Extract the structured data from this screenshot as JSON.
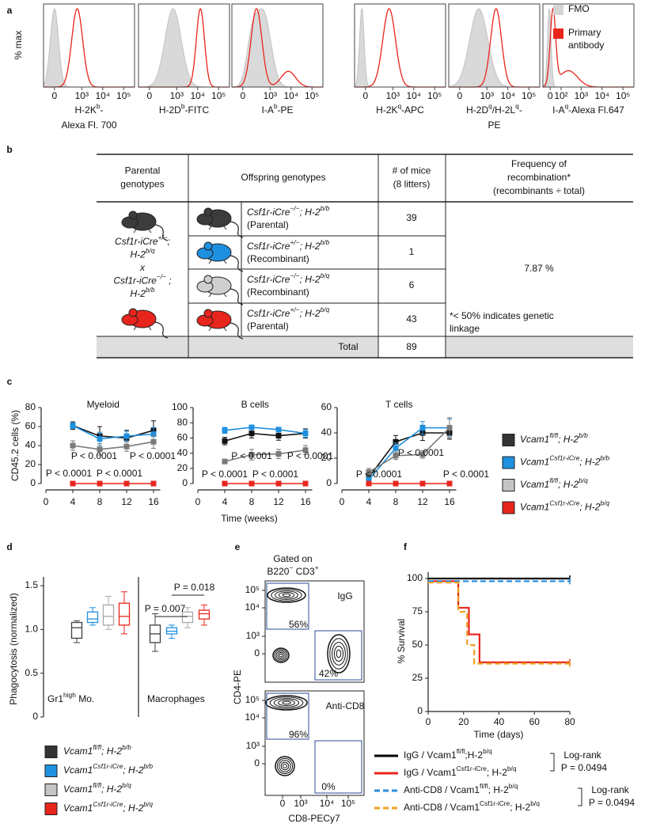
{
  "panel_labels": [
    "a",
    "b",
    "c",
    "d",
    "e",
    "f"
  ],
  "panel_a": {
    "y_label": "% max",
    "plots": [
      {
        "label_lines": [
          [
            "H-2K",
            "b",
            "-"
          ],
          [
            "Alexa Fl. 700"
          ]
        ],
        "xtick_labels": [
          "0",
          "10³",
          "10⁴",
          "10⁵"
        ]
      },
      {
        "label_lines": [
          [
            "H-2D",
            "b",
            "-FITC"
          ]
        ],
        "xtick_labels": [
          "0",
          "10³",
          "10⁴",
          "10⁵"
        ]
      },
      {
        "label_lines": [
          [
            "I-A",
            "b",
            "-PE"
          ]
        ],
        "xtick_labels": [
          "0",
          "10³",
          "10⁴",
          "10⁵"
        ]
      },
      {
        "label_lines": [
          [
            "H-2K",
            "q",
            "-APC"
          ]
        ],
        "xtick_labels": [
          "0",
          "10³",
          "10⁴",
          "10⁵"
        ]
      },
      {
        "label_lines": [
          [
            "H-2D",
            "q",
            "/H-2L",
            "q",
            "-"
          ],
          [
            "PE"
          ]
        ],
        "xtick_labels": [
          "0",
          "10³",
          "10⁴",
          "10⁵"
        ]
      },
      {
        "label_lines": [
          [
            "I-A",
            "q",
            "-Alexa Fl.647"
          ]
        ],
        "xtick_labels": [
          "0",
          "10²",
          "10³",
          "10⁴",
          "10⁵"
        ]
      }
    ],
    "legend": [
      {
        "lines": [
          "FMO"
        ],
        "color": "#d4d4d4"
      },
      {
        "lines": [
          "Primary",
          "antibody"
        ],
        "color": "#e8251c"
      }
    ]
  },
  "panel_b": {
    "header": [
      [
        "Parental",
        "genotypes"
      ],
      [
        "Offspring genotypes"
      ],
      [
        "# of mice",
        "(8 litters)"
      ],
      [
        "Frequency of",
        "recombination*",
        "(recombinants ÷ total)"
      ]
    ],
    "parental_lines": [
      [
        "Csf1r-iCre",
        "+/−",
        ";"
      ],
      [
        "H-2",
        "b/q"
      ],
      [
        "x"
      ],
      [
        "Csf1r-iCre",
        "−/−",
        " ;"
      ],
      [
        "H-2",
        "b/b"
      ]
    ],
    "parental_colors": [
      "#3c3c3c",
      "#e8251c"
    ],
    "rows": [
      {
        "genotype": [
          "Csf1r-iCre",
          "−/−",
          "; H-2",
          "b/b"
        ],
        "kind": "(Parental)",
        "mice": "39",
        "color": "#3c3c3c"
      },
      {
        "genotype": [
          "Csf1r-iCre",
          "+/−",
          "; H-2",
          "b/b"
        ],
        "kind": "(Recombinant)",
        "mice": "1",
        "color": "#1e90e0"
      },
      {
        "genotype": [
          "Csf1r-iCre",
          "−/−",
          "; H-2",
          "b/q"
        ],
        "kind": "(Recombinant)",
        "mice": "6",
        "color": "#cfcfcf"
      },
      {
        "genotype": [
          "Csf1r-iCre",
          "+/−",
          "; H-2",
          "b/q"
        ],
        "kind": "(Parental)",
        "mice": "43",
        "color": "#e8251c"
      }
    ],
    "frequency": "7.87 %",
    "note": [
      "*< 50% indicates genetic",
      "linkage"
    ],
    "total_label": "Total",
    "total": "89"
  },
  "panel_c": {
    "y_label": "CD45.2 cells (%)",
    "x_label": "Time (weeks)"
  },
  "panel_d": {
    "y_label": "Phagocytosis (normalized)"
  },
  "panel_e": {
    "gate_title": "Gated on",
    "gate_population": [
      "B220",
      "−",
      " CD3",
      "+"
    ],
    "plots": [
      {
        "label": "IgG",
        "gates": [
          "56%",
          "42%"
        ]
      },
      {
        "label": "Anti-CD8",
        "gates": [
          "96%",
          "0%"
        ]
      }
    ],
    "y_label": "CD4-PE",
    "x_label": "CD8-PECy7",
    "ytick_labels": [
      "10⁵",
      "10⁴",
      "10³",
      "0"
    ],
    "xtick_labels": [
      "0",
      "10³",
      "10⁴",
      "10⁵"
    ]
  },
  "genotypes": [
    {
      "label": [
        "Vcam1",
        "fl/fl",
        "; H-2",
        "b/b"
      ],
      "color": "#333333"
    },
    {
      "label": [
        "Vcam1",
        "Csf1r-iCre",
        "; H-2",
        "b/b"
      ],
      "color": "#1e90e0"
    },
    {
      "label": [
        "Vcam1",
        "fl/fl",
        "; H-2",
        "b/q"
      ],
      "color": "#c4c4c4"
    },
    {
      "label": [
        "Vcam1",
        "Csf1r-iCre",
        "; H-2",
        "b/q"
      ],
      "color": "#e8251c"
    }
  ],
  "chart_data": [
    {
      "type": "line",
      "title": "Myeloid",
      "x": [
        4,
        8,
        12,
        16
      ],
      "xlim": [
        0,
        17
      ],
      "xticks": [
        0,
        4,
        8,
        12,
        16
      ],
      "ylim": [
        0,
        80
      ],
      "yticks": [
        0,
        20,
        40,
        60,
        80
      ],
      "series": [
        {
          "color": "#111111",
          "values": [
            61,
            50,
            48,
            56
          ],
          "errors": [
            4,
            10,
            8,
            10
          ]
        },
        {
          "color": "#1e90e0",
          "values": [
            61,
            47,
            50,
            52
          ],
          "errors": [
            3,
            7,
            5,
            7
          ]
        },
        {
          "color": "#7a7a7a",
          "values": [
            40,
            36,
            39,
            44
          ],
          "errors": [
            5,
            6,
            5,
            7
          ]
        },
        {
          "color": "#e8251c",
          "values": [
            0,
            0,
            0,
            0
          ],
          "errors": [
            0.5,
            0.5,
            0.5,
            0.5
          ]
        }
      ],
      "annotations": [
        "P < 0.0001",
        "P < 0.0001",
        "P < 0.0001",
        "P < 0.0001"
      ]
    },
    {
      "type": "line",
      "title": "B cells",
      "x": [
        4,
        8,
        12,
        16
      ],
      "xlim": [
        0,
        17
      ],
      "xticks": [
        0,
        4,
        8,
        12,
        16
      ],
      "ylim": [
        0,
        100
      ],
      "yticks": [
        0,
        20,
        40,
        60,
        80,
        100
      ],
      "series": [
        {
          "color": "#111111",
          "values": [
            56,
            66,
            63,
            66
          ],
          "errors": [
            5,
            6,
            6,
            6
          ]
        },
        {
          "color": "#1e90e0",
          "values": [
            70,
            74,
            71,
            66
          ],
          "errors": [
            4,
            3,
            3,
            5
          ]
        },
        {
          "color": "#7a7a7a",
          "values": [
            29,
            38,
            39,
            44
          ],
          "errors": [
            3,
            7,
            6,
            6
          ]
        },
        {
          "color": "#e8251c",
          "values": [
            0,
            0,
            0,
            0
          ],
          "errors": [
            0.5,
            0.5,
            0.5,
            0.5
          ]
        }
      ],
      "annotations": [
        "P < 0.001",
        "P < 0.0001",
        "P < 0.0001",
        "P < 0.0001"
      ]
    },
    {
      "type": "line",
      "title": "T cells",
      "x": [
        4,
        8,
        12,
        16
      ],
      "xlim": [
        0,
        17
      ],
      "xticks": [
        0,
        4,
        8,
        12,
        16
      ],
      "ylim": [
        0,
        60
      ],
      "yticks": [
        0,
        20,
        40,
        60
      ],
      "series": [
        {
          "color": "#111111",
          "values": [
            5,
            33,
            40,
            40
          ],
          "errors": [
            2,
            5,
            6,
            5
          ]
        },
        {
          "color": "#1e90e0",
          "values": [
            3,
            28,
            44,
            44
          ],
          "errors": [
            2,
            4,
            5,
            7
          ]
        },
        {
          "color": "#7a7a7a",
          "values": [
            9,
            22,
            23,
            44
          ],
          "errors": [
            3,
            3,
            3,
            8
          ]
        },
        {
          "color": "#e8251c",
          "values": [
            0,
            0,
            0,
            0
          ],
          "errors": [
            0.5,
            0.5,
            0.5,
            0.5
          ]
        }
      ],
      "annotations": [
        "P < 0.0001",
        "P < 0.0001",
        "P < 0.0001"
      ]
    },
    {
      "type": "box",
      "label": [
        "Gr1",
        "high",
        " Mo."
      ],
      "ylim": [
        0,
        1.6
      ],
      "yticks": [
        0,
        0.5,
        {
          "value": 1,
          "label": "1.0"
        },
        1.5
      ],
      "boxes": [
        {
          "color": "#404040",
          "min": 0.85,
          "q1": 0.9,
          "median": 1.02,
          "q3": 1.08,
          "max": 1.1
        },
        {
          "color": "#1e90e0",
          "min": 1.05,
          "q1": 1.08,
          "median": 1.12,
          "q3": 1.2,
          "max": 1.25
        },
        {
          "color": "#a8a8a8",
          "min": 1.0,
          "q1": 1.05,
          "median": 1.15,
          "q3": 1.28,
          "max": 1.38
        },
        {
          "color": "#e8251c",
          "min": 0.95,
          "q1": 1.05,
          "median": 1.15,
          "q3": 1.3,
          "max": 1.43
        }
      ]
    },
    {
      "type": "box",
      "label": [
        "Macrophages"
      ],
      "ylim": [
        0,
        1.6
      ],
      "boxes": [
        {
          "color": "#404040",
          "min": 0.75,
          "q1": 0.85,
          "median": 0.95,
          "q3": 1.05,
          "max": 1.18
        },
        {
          "color": "#1e90e0",
          "min": 0.9,
          "q1": 0.95,
          "median": 0.98,
          "q3": 1.02,
          "max": 1.05
        },
        {
          "color": "#a8a8a8",
          "min": 1.02,
          "q1": 1.08,
          "median": 1.15,
          "q3": 1.2,
          "max": 1.25
        },
        {
          "color": "#e8251c",
          "min": 1.05,
          "q1": 1.12,
          "median": 1.18,
          "q3": 1.22,
          "max": 1.28
        }
      ],
      "annotations": [
        "P = 0.018",
        "P = 0.007"
      ]
    },
    {
      "type": "survival",
      "y_label": "% Survival",
      "x_label": "Time (days)",
      "xlim": [
        0,
        80
      ],
      "xticks": [
        0,
        20,
        40,
        60,
        80
      ],
      "ylim": [
        0,
        105
      ],
      "yticks": [
        0,
        25,
        50,
        75,
        100
      ],
      "series": [
        {
          "name": [
            "IgG / Vcam1",
            "fl/fl",
            ";H-2",
            "b/q"
          ],
          "color": "#000000",
          "dashed": false,
          "x": [
            0,
            80
          ],
          "values": [
            100,
            100
          ]
        },
        {
          "name": [
            "IgG / Vcam1",
            "Csf1r-iCre",
            "; H-2",
            "b/q"
          ],
          "color": "#e8251c",
          "dashed": false,
          "x": [
            0,
            17,
            17,
            23,
            23,
            29,
            29,
            80
          ],
          "values": [
            98,
            98,
            78,
            78,
            58,
            58,
            37,
            37
          ]
        },
        {
          "name": [
            "Anti-CD8 / Vcam1",
            "fl/fl",
            "; H-2",
            "b/q"
          ],
          "color": "#2a8fe0",
          "dashed": true,
          "x": [
            0,
            80
          ],
          "values": [
            98,
            98
          ]
        },
        {
          "name": [
            "Anti-CD8 / Vcam1",
            "Csf1r-iCre",
            "; H-2",
            "b/q"
          ],
          "color": "#f0a020",
          "dashed": true,
          "x": [
            0,
            17,
            17,
            22,
            22,
            26,
            26,
            80
          ],
          "values": [
            97,
            97,
            75,
            75,
            50,
            50,
            36,
            36
          ]
        }
      ],
      "tests": [
        {
          "name": "Log-rank",
          "p": "P = 0.0494"
        },
        {
          "name": "Log-rank",
          "p": "P = 0.0494"
        }
      ]
    }
  ]
}
